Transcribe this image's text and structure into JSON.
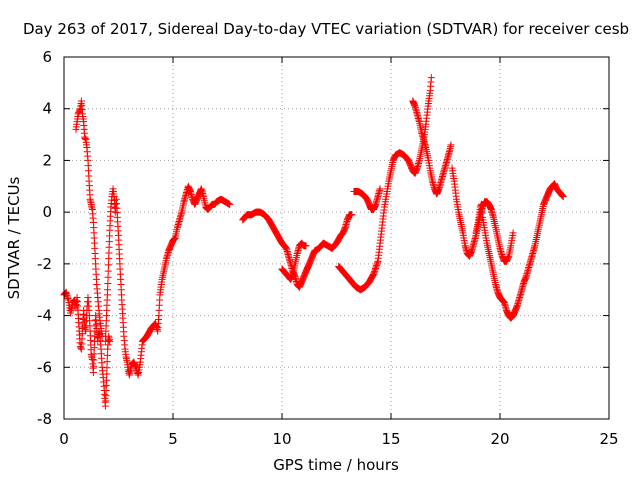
{
  "chart_data": {
    "type": "scatter",
    "title": "Day 263 of 2017, Sidereal Day-to-day VTEC variation (SDTVAR) for receiver cesb",
    "xlabel": "GPS time / hours",
    "ylabel": "SDTVAR / TECUs",
    "xlim": [
      0,
      25
    ],
    "ylim": [
      -8,
      6
    ],
    "xticks": [
      "0",
      "5",
      "10",
      "15",
      "20",
      "25"
    ],
    "yticks": [
      "-8",
      "-6",
      "-4",
      "-2",
      "0",
      "2",
      "4",
      "6"
    ],
    "grid": true,
    "marker": "+",
    "color": "#ff0000",
    "series": [
      {
        "name": "seg1",
        "points": [
          [
            0.0,
            -3.2
          ],
          [
            0.1,
            -3.1
          ],
          [
            0.2,
            -3.4
          ],
          [
            0.3,
            -3.9
          ],
          [
            0.4,
            -3.5
          ],
          [
            0.5,
            -3.4
          ],
          [
            0.55,
            -3.7
          ],
          [
            0.6,
            -3.3
          ],
          [
            0.7,
            -4.6
          ],
          [
            0.75,
            -5.2
          ],
          [
            0.8,
            -5.3
          ],
          [
            0.85,
            -4.5
          ],
          [
            0.9,
            -3.8
          ],
          [
            0.95,
            -4.4
          ],
          [
            1.0,
            -4.6
          ],
          [
            1.05,
            -3.8
          ],
          [
            1.1,
            -3.3
          ],
          [
            1.15,
            -3.8
          ],
          [
            1.2,
            -4.6
          ],
          [
            1.25,
            -5.5
          ],
          [
            1.3,
            -5.7
          ],
          [
            1.35,
            -6.2
          ],
          [
            1.4,
            -5.0
          ],
          [
            1.45,
            -4.0
          ],
          [
            1.5,
            -4.5
          ],
          [
            1.55,
            -5.0
          ],
          [
            1.6,
            -4.6
          ],
          [
            1.65,
            -4.8
          ],
          [
            1.7,
            -5.3
          ],
          [
            1.75,
            -6.0
          ],
          [
            1.8,
            -6.4
          ],
          [
            1.85,
            -6.9
          ],
          [
            1.9,
            -7.5
          ],
          [
            1.95,
            -6.5
          ],
          [
            2.0,
            -5.3
          ],
          [
            2.05,
            -4.8
          ],
          [
            2.1,
            -5.0
          ]
        ]
      },
      {
        "name": "seg2",
        "points": [
          [
            0.55,
            3.2
          ],
          [
            0.6,
            3.5
          ],
          [
            0.65,
            3.8
          ],
          [
            0.7,
            3.9
          ],
          [
            0.75,
            4.0
          ],
          [
            0.8,
            4.3
          ],
          [
            0.85,
            3.8
          ],
          [
            0.9,
            3.5
          ],
          [
            0.95,
            2.9
          ],
          [
            1.0,
            2.8
          ],
          [
            1.05,
            2.5
          ],
          [
            1.1,
            2.0
          ],
          [
            1.15,
            1.2
          ],
          [
            1.2,
            0.5
          ],
          [
            1.25,
            0.3
          ],
          [
            1.3,
            0.1
          ],
          [
            1.35,
            -0.4
          ],
          [
            1.4,
            -1.2
          ],
          [
            1.45,
            -2.0
          ],
          [
            1.5,
            -2.8
          ],
          [
            1.55,
            -3.3
          ],
          [
            1.6,
            -3.8
          ],
          [
            1.65,
            -4.2
          ],
          [
            1.7,
            -4.5
          ],
          [
            1.75,
            -4.8
          ]
        ]
      },
      {
        "name": "seg3",
        "points": [
          [
            1.9,
            -5.0
          ],
          [
            1.95,
            -4.0
          ],
          [
            2.0,
            -3.0
          ],
          [
            2.05,
            -1.8
          ],
          [
            2.1,
            -0.7
          ],
          [
            2.15,
            0.2
          ],
          [
            2.2,
            0.6
          ],
          [
            2.25,
            0.9
          ],
          [
            2.3,
            0.6
          ],
          [
            2.35,
            0.0
          ],
          [
            2.4,
            0.5
          ],
          [
            2.45,
            -0.2
          ],
          [
            2.5,
            -0.9
          ],
          [
            2.55,
            -1.8
          ],
          [
            2.6,
            -2.6
          ],
          [
            2.65,
            -3.4
          ],
          [
            2.7,
            -4.1
          ],
          [
            2.75,
            -4.8
          ],
          [
            2.8,
            -5.3
          ],
          [
            2.85,
            -5.6
          ],
          [
            2.9,
            -5.8
          ],
          [
            2.95,
            -6.1
          ],
          [
            3.0,
            -6.3
          ],
          [
            3.1,
            -5.9
          ],
          [
            3.2,
            -5.8
          ],
          [
            3.3,
            -6.0
          ],
          [
            3.4,
            -6.3
          ],
          [
            3.5,
            -5.8
          ],
          [
            3.6,
            -5.0
          ],
          [
            3.8,
            -4.8
          ],
          [
            4.0,
            -4.5
          ],
          [
            4.2,
            -4.3
          ],
          [
            4.3,
            -4.6
          ],
          [
            4.35,
            -4.0
          ],
          [
            4.4,
            -3.2
          ],
          [
            4.5,
            -2.6
          ],
          [
            4.6,
            -2.2
          ],
          [
            4.7,
            -1.8
          ],
          [
            4.8,
            -1.5
          ],
          [
            4.9,
            -1.3
          ],
          [
            5.0,
            -1.1
          ],
          [
            5.1,
            -1.0
          ],
          [
            5.2,
            -0.6
          ],
          [
            5.3,
            -0.3
          ],
          [
            5.4,
            0.0
          ],
          [
            5.5,
            0.4
          ],
          [
            5.6,
            0.7
          ],
          [
            5.7,
            1.0
          ],
          [
            5.8,
            0.8
          ],
          [
            5.9,
            0.5
          ],
          [
            6.0,
            0.3
          ],
          [
            6.1,
            0.5
          ],
          [
            6.2,
            0.7
          ],
          [
            6.3,
            0.9
          ],
          [
            6.4,
            0.6
          ],
          [
            6.5,
            0.2
          ],
          [
            6.6,
            0.1
          ],
          [
            6.7,
            0.2
          ],
          [
            6.8,
            0.3
          ],
          [
            6.9,
            0.3
          ],
          [
            7.0,
            0.4
          ],
          [
            7.2,
            0.5
          ],
          [
            7.4,
            0.4
          ],
          [
            7.6,
            0.3
          ]
        ]
      },
      {
        "name": "seg4",
        "points": [
          [
            8.2,
            -0.3
          ],
          [
            8.4,
            -0.1
          ],
          [
            8.6,
            -0.1
          ],
          [
            8.8,
            0.0
          ],
          [
            9.0,
            0.0
          ],
          [
            9.2,
            -0.1
          ],
          [
            9.4,
            -0.3
          ],
          [
            9.6,
            -0.6
          ],
          [
            9.8,
            -0.9
          ],
          [
            10.0,
            -1.2
          ],
          [
            10.2,
            -1.4
          ],
          [
            10.3,
            -1.7
          ],
          [
            10.4,
            -2.0
          ],
          [
            10.5,
            -2.3
          ],
          [
            10.6,
            -2.5
          ],
          [
            10.7,
            -2.8
          ],
          [
            10.8,
            -2.9
          ],
          [
            10.9,
            -2.7
          ],
          [
            11.0,
            -2.5
          ],
          [
            11.1,
            -2.3
          ],
          [
            11.2,
            -2.1
          ],
          [
            11.3,
            -1.9
          ],
          [
            11.4,
            -1.7
          ],
          [
            11.5,
            -1.5
          ],
          [
            11.7,
            -1.4
          ],
          [
            11.9,
            -1.2
          ],
          [
            12.1,
            -1.3
          ],
          [
            12.3,
            -1.4
          ],
          [
            12.5,
            -1.2
          ],
          [
            12.7,
            -0.9
          ],
          [
            12.8,
            -0.8
          ],
          [
            12.9,
            -0.6
          ],
          [
            13.0,
            -0.3
          ],
          [
            13.1,
            -0.1
          ],
          [
            13.2,
            -0.1
          ]
        ]
      },
      {
        "name": "seg5",
        "points": [
          [
            10.0,
            -2.2
          ],
          [
            10.1,
            -2.3
          ],
          [
            10.2,
            -2.4
          ],
          [
            10.3,
            -2.5
          ],
          [
            10.4,
            -2.6
          ],
          [
            10.5,
            -2.4
          ],
          [
            10.6,
            -2.0
          ],
          [
            10.7,
            -1.6
          ],
          [
            10.8,
            -1.3
          ],
          [
            10.9,
            -1.2
          ],
          [
            11.0,
            -1.3
          ],
          [
            11.1,
            -1.3
          ]
        ]
      },
      {
        "name": "seg6",
        "points": [
          [
            12.6,
            -2.1
          ],
          [
            12.8,
            -2.3
          ],
          [
            13.0,
            -2.5
          ],
          [
            13.2,
            -2.7
          ],
          [
            13.4,
            -2.9
          ],
          [
            13.6,
            -3.0
          ],
          [
            13.8,
            -2.9
          ],
          [
            14.0,
            -2.7
          ],
          [
            14.2,
            -2.4
          ],
          [
            14.4,
            -1.9
          ],
          [
            14.5,
            -1.2
          ],
          [
            14.6,
            -0.5
          ],
          [
            14.7,
            0.2
          ],
          [
            14.8,
            0.7
          ],
          [
            14.9,
            1.2
          ],
          [
            15.0,
            1.6
          ],
          [
            15.1,
            2.0
          ],
          [
            15.2,
            2.2
          ],
          [
            15.4,
            2.3
          ],
          [
            15.6,
            2.2
          ],
          [
            15.8,
            2.0
          ],
          [
            16.0,
            1.6
          ],
          [
            16.1,
            1.5
          ],
          [
            16.2,
            1.7
          ],
          [
            16.3,
            2.0
          ],
          [
            16.4,
            2.4
          ],
          [
            16.5,
            2.8
          ],
          [
            16.6,
            3.4
          ],
          [
            16.7,
            4.1
          ],
          [
            16.8,
            4.7
          ],
          [
            16.85,
            5.2
          ]
        ]
      },
      {
        "name": "seg7",
        "points": [
          [
            13.3,
            0.8
          ],
          [
            13.5,
            0.8
          ],
          [
            13.7,
            0.7
          ],
          [
            13.9,
            0.5
          ],
          [
            14.0,
            0.3
          ],
          [
            14.1,
            0.1
          ],
          [
            14.2,
            0.1
          ],
          [
            14.3,
            0.3
          ],
          [
            14.4,
            0.6
          ],
          [
            14.5,
            0.9
          ]
        ]
      },
      {
        "name": "seg8",
        "points": [
          [
            16.0,
            4.3
          ],
          [
            16.1,
            4.1
          ],
          [
            16.2,
            3.8
          ],
          [
            16.3,
            3.5
          ],
          [
            16.4,
            3.1
          ],
          [
            16.5,
            2.8
          ],
          [
            16.6,
            2.5
          ],
          [
            16.7,
            2.1
          ],
          [
            16.8,
            1.6
          ],
          [
            16.9,
            1.2
          ],
          [
            17.0,
            0.9
          ],
          [
            17.1,
            0.7
          ],
          [
            17.2,
            0.9
          ],
          [
            17.3,
            1.2
          ],
          [
            17.4,
            1.5
          ],
          [
            17.5,
            1.8
          ],
          [
            17.6,
            2.1
          ],
          [
            17.7,
            2.4
          ],
          [
            17.75,
            2.6
          ]
        ]
      },
      {
        "name": "seg9",
        "points": [
          [
            17.8,
            1.7
          ],
          [
            17.9,
            1.2
          ],
          [
            18.0,
            0.5
          ],
          [
            18.1,
            0.0
          ],
          [
            18.2,
            -0.4
          ],
          [
            18.3,
            -0.8
          ],
          [
            18.4,
            -1.3
          ],
          [
            18.5,
            -1.6
          ],
          [
            18.6,
            -1.7
          ],
          [
            18.7,
            -1.5
          ],
          [
            18.8,
            -1.2
          ],
          [
            18.9,
            -0.9
          ],
          [
            19.0,
            -0.5
          ],
          [
            19.1,
            -0.1
          ],
          [
            19.2,
            0.2
          ],
          [
            19.3,
            0.4
          ],
          [
            19.4,
            0.4
          ],
          [
            19.5,
            0.3
          ],
          [
            19.6,
            0.1
          ],
          [
            19.7,
            -0.2
          ],
          [
            19.8,
            -0.6
          ],
          [
            19.9,
            -1.0
          ],
          [
            20.0,
            -1.4
          ],
          [
            20.1,
            -1.7
          ],
          [
            20.2,
            -1.9
          ],
          [
            20.3,
            -1.9
          ],
          [
            20.4,
            -1.7
          ],
          [
            20.5,
            -1.3
          ],
          [
            20.6,
            -0.8
          ]
        ]
      },
      {
        "name": "seg10",
        "points": [
          [
            18.9,
            -0.8
          ],
          [
            19.0,
            -0.4
          ],
          [
            19.1,
            0.2
          ],
          [
            19.15,
            0.3
          ],
          [
            19.2,
            -0.2
          ],
          [
            19.3,
            -0.7
          ],
          [
            19.4,
            -1.2
          ],
          [
            19.5,
            -1.6
          ],
          [
            19.6,
            -2.0
          ],
          [
            19.7,
            -2.4
          ],
          [
            19.8,
            -2.8
          ],
          [
            19.9,
            -3.1
          ],
          [
            20.0,
            -3.3
          ],
          [
            20.1,
            -3.4
          ],
          [
            20.2,
            -3.5
          ],
          [
            20.3,
            -3.8
          ],
          [
            20.4,
            -4.0
          ],
          [
            20.5,
            -4.1
          ],
          [
            20.6,
            -4.0
          ],
          [
            20.7,
            -3.8
          ],
          [
            20.8,
            -3.6
          ],
          [
            20.9,
            -3.3
          ],
          [
            21.0,
            -3.0
          ],
          [
            21.1,
            -2.7
          ],
          [
            21.2,
            -2.5
          ],
          [
            21.3,
            -2.2
          ],
          [
            21.4,
            -1.9
          ],
          [
            21.5,
            -1.6
          ],
          [
            21.6,
            -1.3
          ],
          [
            21.7,
            -0.9
          ],
          [
            21.8,
            -0.5
          ],
          [
            21.9,
            -0.1
          ],
          [
            22.0,
            0.3
          ],
          [
            22.1,
            0.5
          ],
          [
            22.2,
            0.7
          ],
          [
            22.3,
            0.9
          ],
          [
            22.4,
            1.0
          ],
          [
            22.5,
            1.1
          ],
          [
            22.6,
            0.9
          ],
          [
            22.7,
            0.8
          ],
          [
            22.8,
            0.7
          ],
          [
            22.9,
            0.6
          ]
        ]
      }
    ]
  }
}
